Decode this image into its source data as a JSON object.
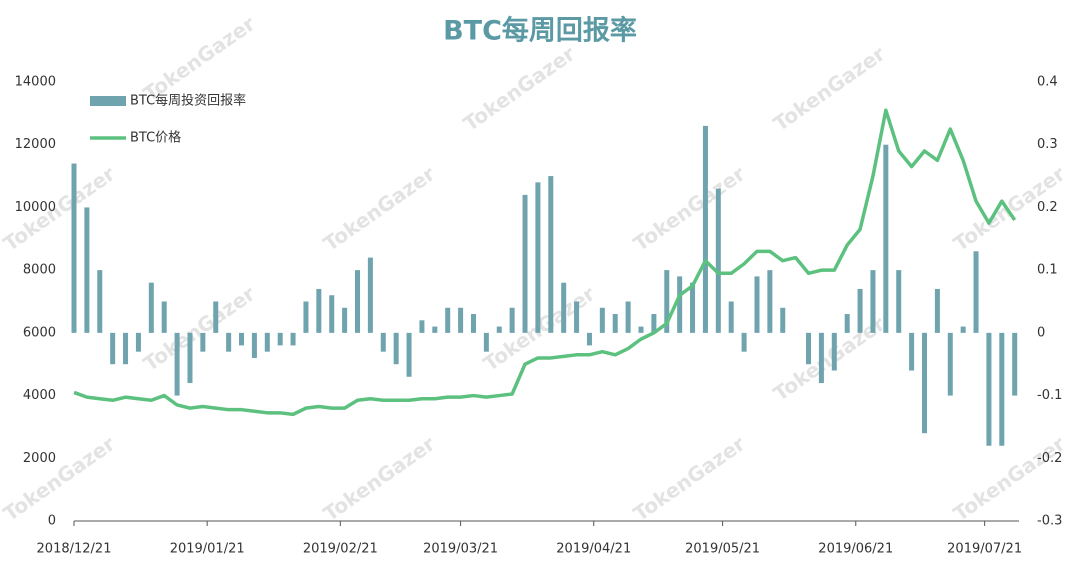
{
  "chart_data": {
    "type": "bar-line",
    "title": "BTC每周回报率",
    "watermark": "TokenGazer",
    "x": [
      "2018/12/21",
      "2018/12/24",
      "2018/12/27",
      "2018/12/30",
      "2019/01/02",
      "2019/01/05",
      "2019/01/08",
      "2019/01/11",
      "2019/01/14",
      "2019/01/17",
      "2019/01/20",
      "2019/01/23",
      "2019/01/26",
      "2019/01/29",
      "2019/02/01",
      "2019/02/04",
      "2019/02/07",
      "2019/02/10",
      "2019/02/13",
      "2019/02/16",
      "2019/02/19",
      "2019/02/22",
      "2019/02/25",
      "2019/02/28",
      "2019/03/03",
      "2019/03/06",
      "2019/03/09",
      "2019/03/12",
      "2019/03/15",
      "2019/03/18",
      "2019/03/21",
      "2019/03/24",
      "2019/03/27",
      "2019/03/30",
      "2019/04/02",
      "2019/04/05",
      "2019/04/08",
      "2019/04/11",
      "2019/04/14",
      "2019/04/17",
      "2019/04/20",
      "2019/04/23",
      "2019/04/26",
      "2019/04/29",
      "2019/05/02",
      "2019/05/05",
      "2019/05/08",
      "2019/05/11",
      "2019/05/14",
      "2019/05/17",
      "2019/05/20",
      "2019/05/23",
      "2019/05/26",
      "2019/05/29",
      "2019/06/01",
      "2019/06/04",
      "2019/06/07",
      "2019/06/10",
      "2019/06/13",
      "2019/06/16",
      "2019/06/19",
      "2019/06/22",
      "2019/06/25",
      "2019/06/28",
      "2019/07/01",
      "2019/07/04",
      "2019/07/07",
      "2019/07/10",
      "2019/07/13",
      "2019/07/16",
      "2019/07/19",
      "2019/07/22",
      "2019/07/25",
      "2019/07/28"
    ],
    "series": [
      {
        "name": "BTC每周投资回报率",
        "type": "bar",
        "axis": "y2",
        "color": "#6fa3ad",
        "values": [
          0.27,
          0.2,
          0.1,
          -0.05,
          -0.05,
          -0.03,
          0.08,
          0.05,
          -0.1,
          -0.08,
          -0.03,
          0.05,
          -0.03,
          -0.02,
          -0.04,
          -0.03,
          -0.02,
          -0.02,
          0.05,
          0.07,
          0.06,
          0.04,
          0.1,
          0.12,
          -0.03,
          -0.05,
          -0.07,
          0.02,
          0.01,
          0.04,
          0.04,
          0.03,
          -0.03,
          0.01,
          0.04,
          0.22,
          0.24,
          0.25,
          0.08,
          0.05,
          -0.02,
          0.04,
          0.03,
          0.05,
          0.01,
          0.03,
          0.1,
          0.09,
          0.08,
          0.33,
          0.23,
          0.05,
          -0.03,
          0.09,
          0.1,
          0.04,
          0.0,
          -0.05,
          -0.08,
          -0.06,
          0.03,
          0.07,
          0.1,
          0.3,
          0.1,
          -0.06,
          -0.16,
          0.07,
          -0.1,
          0.01,
          0.13,
          -0.18,
          -0.18,
          -0.1
        ]
      },
      {
        "name": "BTC价格",
        "type": "line",
        "color": "#5cc17f",
        "values": [
          4100,
          3950,
          3900,
          3850,
          3950,
          3900,
          3850,
          4000,
          3700,
          3600,
          3650,
          3600,
          3550,
          3550,
          3500,
          3450,
          3450,
          3400,
          3600,
          3650,
          3600,
          3600,
          3850,
          3900,
          3850,
          3850,
          3850,
          3900,
          3900,
          3950,
          3950,
          4000,
          3950,
          4000,
          4050,
          5000,
          5200,
          5200,
          5250,
          5300,
          5300,
          5400,
          5300,
          5500,
          5800,
          6000,
          6300,
          7200,
          7500,
          8300,
          7900,
          7900,
          8200,
          8600,
          8600,
          8300,
          8400,
          7900,
          8000,
          8000,
          8800,
          9300,
          11000,
          13100,
          11800,
          11300,
          11800,
          11500,
          12500,
          11500,
          10200,
          9500,
          10200,
          9600
        ]
      }
    ],
    "xlim": [
      "2018/12/21",
      "2019/07/29"
    ],
    "xticks": [
      "2018/12/21",
      "2019/01/21",
      "2019/02/21",
      "2019/03/21",
      "2019/04/21",
      "2019/05/21",
      "2019/06/21",
      "2019/07/21"
    ],
    "ylim": [
      0,
      14000
    ],
    "yticks": [
      0,
      2000,
      4000,
      6000,
      8000,
      10000,
      12000,
      14000
    ],
    "y2lim": [
      -0.3,
      0.4
    ],
    "y2ticks": [
      -0.3,
      -0.2,
      -0.1,
      0,
      0.1,
      0.2,
      0.3,
      0.4
    ],
    "legend": "top-left"
  }
}
